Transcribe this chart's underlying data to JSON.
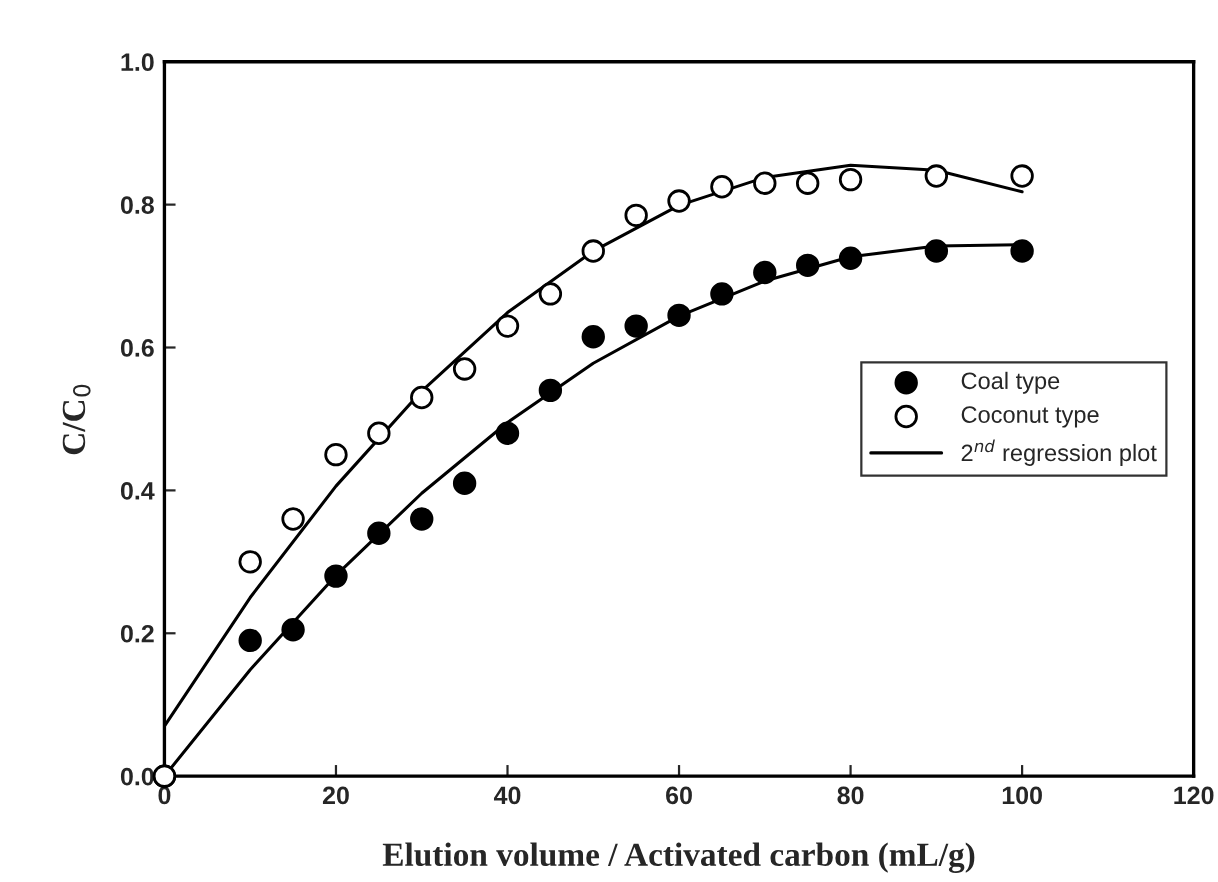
{
  "chart_data": {
    "type": "scatter",
    "xlabel": "Elution volume / Activated carbon (mL/g)",
    "ylabel": "C/C$_{0}$",
    "xlim": [
      0,
      120
    ],
    "ylim": [
      0,
      1.0
    ],
    "xticks": [
      0,
      20,
      40,
      60,
      80,
      100,
      120
    ],
    "yticks": [
      {
        "value": 0,
        "label": "0.0"
      },
      {
        "value": 0.2,
        "label": "0.2"
      },
      {
        "value": 0.4,
        "label": "0.4"
      },
      {
        "value": 0.6,
        "label": "0.6"
      },
      {
        "value": 0.8,
        "label": "0.8"
      },
      {
        "value": 1.0,
        "label": "1.0"
      }
    ],
    "grid": false,
    "legend": "right",
    "series": [
      {
        "name": "Coal type",
        "marker": "circle",
        "color": "#000000",
        "x": [
          0,
          10,
          15,
          20,
          25,
          30,
          35,
          40,
          45,
          50,
          55,
          60,
          65,
          70,
          75,
          80,
          90,
          100
        ],
        "values": [
          0,
          0.19,
          0.205,
          0.28,
          0.34,
          0.36,
          0.41,
          0.48,
          0.54,
          0.615,
          0.63,
          0.645,
          0.675,
          0.705,
          0.715,
          0.725,
          0.735,
          0.735
        ]
      },
      {
        "name": "Coconut type",
        "marker": "circle",
        "color": "#ffffff",
        "x": [
          0,
          10,
          15,
          20,
          25,
          30,
          35,
          40,
          45,
          50,
          55,
          60,
          65,
          70,
          75,
          80,
          90,
          100
        ],
        "values": [
          0,
          0.3,
          0.36,
          0.45,
          0.48,
          0.53,
          0.57,
          0.63,
          0.675,
          0.735,
          0.785,
          0.805,
          0.825,
          0.83,
          0.83,
          0.835,
          0.84,
          0.84
        ]
      },
      {
        "name": "2$^{nd}$ regression plot",
        "type": "line",
        "color": "#000000",
        "x": [
          0,
          10,
          20,
          30,
          40,
          50,
          60,
          70,
          80,
          90,
          100
        ],
        "values": [
          0,
          0.149,
          0.281,
          0.396,
          0.495,
          0.578,
          0.644,
          0.693,
          0.727,
          0.742,
          0.744
        ]
      },
      {
        "type": "line",
        "color": "#000000",
        "x": [
          0,
          10,
          20,
          30,
          40,
          50,
          60,
          70,
          80,
          90,
          100
        ],
        "values": [
          0.07,
          0.25,
          0.406,
          0.539,
          0.649,
          0.735,
          0.799,
          0.838,
          0.855,
          0.848,
          0.818
        ]
      }
    ]
  }
}
